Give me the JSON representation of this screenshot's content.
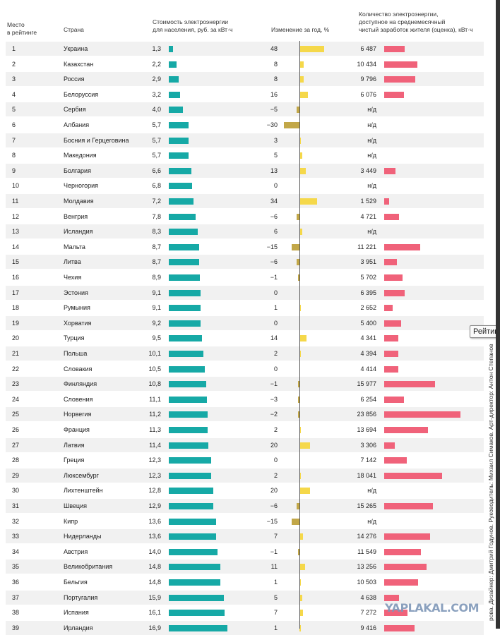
{
  "headers": {
    "rank": "Место\nв рейтинге",
    "country": "Страна",
    "cost": "Стоимость электроэнергии\nдля населения, руб. за кВт·ч",
    "change": "Изменение за год, %",
    "amount": "Количество электроэнергии,\nдоступное на среднемесячный\nчистый заработок жителя (оценка), кВт·ч"
  },
  "colors": {
    "cost_bar": "#16a9a6",
    "change_positive": "#f5d84a",
    "change_negative": "#c2a748",
    "amount_bar": "#f0627a"
  },
  "rows": [
    {
      "rank": "1",
      "country": "Украина",
      "cost": "1,3",
      "change": "48",
      "amount": "6 487"
    },
    {
      "rank": "2",
      "country": "Казахстан",
      "cost": "2,2",
      "change": "8",
      "amount": "10 434"
    },
    {
      "rank": "3",
      "country": "Россия",
      "cost": "2,9",
      "change": "8",
      "amount": "9 796"
    },
    {
      "rank": "4",
      "country": "Белоруссия",
      "cost": "3,2",
      "change": "16",
      "amount": "6 076"
    },
    {
      "rank": "5",
      "country": "Сербия",
      "cost": "4,0",
      "change": "−5",
      "amount": "н/д"
    },
    {
      "rank": "6",
      "country": "Албания",
      "cost": "5,7",
      "change": "−30",
      "amount": "н/д"
    },
    {
      "rank": "7",
      "country": "Босния и Герцеговина",
      "cost": "5,7",
      "change": "3",
      "amount": "н/д"
    },
    {
      "rank": "8",
      "country": "Македония",
      "cost": "5,7",
      "change": "5",
      "amount": "н/д"
    },
    {
      "rank": "9",
      "country": "Болгария",
      "cost": "6,6",
      "change": "13",
      "amount": "3 449"
    },
    {
      "rank": "10",
      "country": "Черногория",
      "cost": "6,8",
      "change": "0",
      "amount": "н/д"
    },
    {
      "rank": "11",
      "country": "Молдавия",
      "cost": "7,2",
      "change": "34",
      "amount": "1 529"
    },
    {
      "rank": "12",
      "country": "Венгрия",
      "cost": "7,8",
      "change": "−6",
      "amount": "4 721"
    },
    {
      "rank": "13",
      "country": "Исландия",
      "cost": "8,3",
      "change": "6",
      "amount": "н/д"
    },
    {
      "rank": "14",
      "country": "Мальта",
      "cost": "8,7",
      "change": "−15",
      "amount": "11 221"
    },
    {
      "rank": "15",
      "country": "Литва",
      "cost": "8,7",
      "change": "−6",
      "amount": "3 951"
    },
    {
      "rank": "16",
      "country": "Чехия",
      "cost": "8,9",
      "change": "−1",
      "amount": "5 702"
    },
    {
      "rank": "17",
      "country": "Эстония",
      "cost": "9,1",
      "change": "0",
      "amount": "6 395"
    },
    {
      "rank": "18",
      "country": "Румыния",
      "cost": "9,1",
      "change": "1",
      "amount": "2 652"
    },
    {
      "rank": "19",
      "country": "Хорватия",
      "cost": "9,2",
      "change": "0",
      "amount": "5 400"
    },
    {
      "rank": "20",
      "country": "Турция",
      "cost": "9,5",
      "change": "14",
      "amount": "4 341"
    },
    {
      "rank": "21",
      "country": "Польша",
      "cost": "10,1",
      "change": "2",
      "amount": "4 394"
    },
    {
      "rank": "22",
      "country": "Словакия",
      "cost": "10,5",
      "change": "0",
      "amount": "4 414"
    },
    {
      "rank": "23",
      "country": "Финляндия",
      "cost": "10,8",
      "change": "−1",
      "amount": "15 977"
    },
    {
      "rank": "24",
      "country": "Словения",
      "cost": "11,1",
      "change": "−3",
      "amount": "6 254"
    },
    {
      "rank": "25",
      "country": "Норвегия",
      "cost": "11,2",
      "change": "−2",
      "amount": "23 856"
    },
    {
      "rank": "26",
      "country": "Франция",
      "cost": "11,3",
      "change": "2",
      "amount": "13 694"
    },
    {
      "rank": "27",
      "country": "Латвия",
      "cost": "11,4",
      "change": "20",
      "amount": "3 306"
    },
    {
      "rank": "28",
      "country": "Греция",
      "cost": "12,3",
      "change": "0",
      "amount": "7 142"
    },
    {
      "rank": "29",
      "country": "Люксембург",
      "cost": "12,3",
      "change": "2",
      "amount": "18 041"
    },
    {
      "rank": "30",
      "country": "Лихтенштейн",
      "cost": "12,8",
      "change": "20",
      "amount": "н/д"
    },
    {
      "rank": "31",
      "country": "Швеция",
      "cost": "12,9",
      "change": "−6",
      "amount": "15 265"
    },
    {
      "rank": "32",
      "country": "Кипр",
      "cost": "13,6",
      "change": "−15",
      "amount": "н/д"
    },
    {
      "rank": "33",
      "country": "Нидерланды",
      "cost": "13,6",
      "change": "7",
      "amount": "14 276"
    },
    {
      "rank": "34",
      "country": "Австрия",
      "cost": "14,0",
      "change": "−1",
      "amount": "11 549"
    },
    {
      "rank": "35",
      "country": "Великобритания",
      "cost": "14,8",
      "change": "11",
      "amount": "13 256"
    },
    {
      "rank": "36",
      "country": "Бельгия",
      "cost": "14,8",
      "change": "1",
      "amount": "10 503"
    },
    {
      "rank": "37",
      "country": "Португалия",
      "cost": "15,9",
      "change": "5",
      "amount": "4 638"
    },
    {
      "rank": "38",
      "country": "Испания",
      "cost": "16,1",
      "change": "7",
      "amount": "7 272"
    },
    {
      "rank": "39",
      "country": "Ирландия",
      "cost": "16,9",
      "change": "1",
      "amount": "9 416"
    }
  ],
  "credits": "рова. Дизайнер: Дмитрий Годунов. Руководитель: Михаил Симаков. Арт-директор: Антон Степанов",
  "tooltip": "Рейтин",
  "watermark": "YAPLAKAL.COM"
}
